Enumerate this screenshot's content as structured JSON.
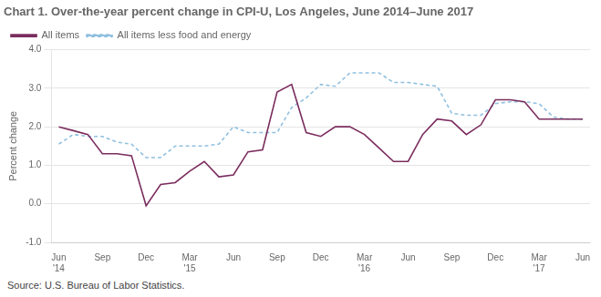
{
  "chart_data": {
    "type": "line",
    "title": "Chart 1. Over-the-year percent change in CPI-U, Los Angeles, June 2014–June 2017",
    "ylabel": "Percent change",
    "source": "Source: U.S. Bureau of Labor Statistics.",
    "categories": [
      "Jun\n'14",
      null,
      null,
      "Sep",
      null,
      null,
      "Dec",
      null,
      null,
      "Mar\n'15",
      null,
      null,
      "Jun",
      null,
      null,
      "Sep",
      null,
      null,
      "Dec",
      null,
      null,
      "Mar\n'16",
      null,
      null,
      "Jun",
      null,
      null,
      "Sep",
      null,
      null,
      "Dec",
      null,
      null,
      "Mar\n'17",
      null,
      null,
      "Jun"
    ],
    "series": [
      {
        "name": "All items",
        "color": "#7B2D5E",
        "line_style": "solid",
        "values": [
          2.0,
          1.9,
          1.8,
          1.3,
          1.3,
          1.25,
          -0.05,
          0.5,
          0.55,
          0.85,
          1.1,
          0.7,
          0.75,
          1.35,
          1.4,
          2.9,
          3.1,
          1.85,
          1.75,
          2.0,
          2.0,
          1.8,
          1.45,
          1.1,
          1.1,
          1.8,
          2.2,
          2.15,
          1.8,
          2.05,
          2.7,
          2.7,
          2.65,
          2.2,
          2.2,
          2.2,
          2.2
        ]
      },
      {
        "name": "All items less food and energy",
        "color": "#91C0E0",
        "line_style": "dashed",
        "values": [
          1.55,
          1.8,
          1.75,
          1.75,
          1.6,
          1.55,
          1.2,
          1.2,
          1.5,
          1.5,
          1.5,
          1.55,
          2.0,
          1.85,
          1.85,
          1.85,
          2.5,
          2.75,
          3.1,
          3.05,
          3.4,
          3.4,
          3.4,
          3.15,
          3.15,
          3.1,
          3.05,
          2.35,
          2.3,
          2.3,
          2.6,
          2.65,
          2.65,
          2.6,
          2.25,
          2.2,
          2.2
        ]
      }
    ],
    "ylim": [
      -1.0,
      4.0
    ],
    "yticks": [
      {
        "value": -1.0,
        "label": "-1.0"
      },
      {
        "value": 0.0,
        "label": "0.0"
      },
      {
        "value": 1.0,
        "label": "1.0"
      },
      {
        "value": 2.0,
        "label": "2.0"
      },
      {
        "value": 3.0,
        "label": "3.0"
      },
      {
        "value": 4.0,
        "label": "4.0"
      }
    ],
    "grid": "y",
    "legend": "upper left"
  }
}
